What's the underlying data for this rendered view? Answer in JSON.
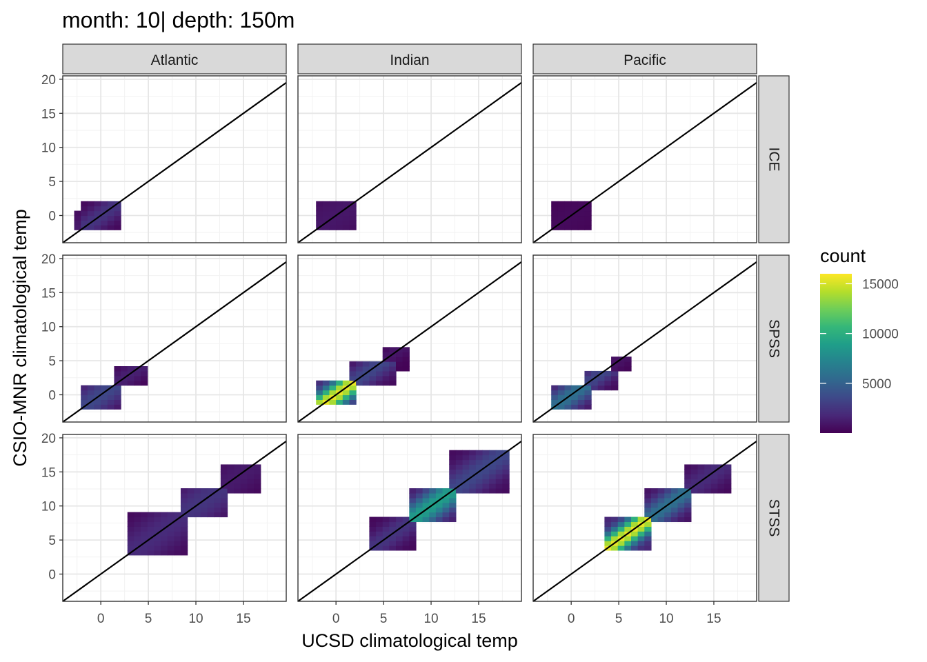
{
  "chart_data": {
    "type": "heatmap",
    "title": "month: 10| depth: 150m",
    "xlabel": "UCSD climatological temp",
    "ylabel": "CSIO-MNR climatological temp",
    "xlim": [
      -4,
      19.5
    ],
    "ylim": [
      -4,
      20.5
    ],
    "x_ticks": [
      0,
      5,
      10,
      15
    ],
    "y_ticks": [
      0,
      5,
      10,
      15,
      20
    ],
    "bin_width": 0.7,
    "reference_line": "y = x",
    "grid": true,
    "facet_columns": [
      "Atlantic",
      "Indian",
      "Pacific"
    ],
    "facet_rows": [
      "ICE",
      "SPSS",
      "STSS"
    ],
    "legend": {
      "title": "count",
      "position": "right",
      "breaks": [
        5000,
        10000,
        15000
      ],
      "range": [
        0,
        16000
      ],
      "colormap": "viridis"
    },
    "panels": [
      {
        "column": "Atlantic",
        "row": "ICE",
        "cells": [
          {
            "x": [
              -2.5,
              0.5
            ],
            "y": [
              -1.5,
              0.5
            ],
            "count": 1200,
            "spread": 1.5
          },
          {
            "x": [
              -1.5,
              1.5
            ],
            "y": [
              -1.5,
              1.5
            ],
            "count": 2500,
            "spread": 1.1
          },
          {
            "x": [
              0.5,
              2.0
            ],
            "y": [
              -0.5,
              1.5
            ],
            "count": 600,
            "spread": 0.8
          }
        ]
      },
      {
        "column": "Indian",
        "row": "ICE",
        "cells": [
          {
            "x": [
              -2.0,
              2.0
            ],
            "y": [
              -1.5,
              1.5
            ],
            "count": 1000,
            "spread": 2.5
          }
        ]
      },
      {
        "column": "Pacific",
        "row": "ICE",
        "cells": [
          {
            "x": [
              -2.0,
              2.0
            ],
            "y": [
              -1.5,
              1.5
            ],
            "count": 400,
            "spread": 2.0
          }
        ]
      },
      {
        "column": "Atlantic",
        "row": "SPSS",
        "cells": [
          {
            "x": [
              -2.0,
              1.5
            ],
            "y": [
              -1.5,
              1.0
            ],
            "count": 3500,
            "spread": 1.5
          },
          {
            "x": [
              1.5,
              4.5
            ],
            "y": [
              1.5,
              4.0
            ],
            "count": 1500,
            "spread": 1.0
          }
        ]
      },
      {
        "column": "Indian",
        "row": "SPSS",
        "cells": [
          {
            "x": [
              -1.5,
              2.0
            ],
            "y": [
              -1.0,
              1.5
            ],
            "count": 15500,
            "spread": 1.0
          },
          {
            "x": [
              2.0,
              6.0
            ],
            "y": [
              1.5,
              4.5
            ],
            "count": 3500,
            "spread": 1.2
          },
          {
            "x": [
              5.0,
              7.5
            ],
            "y": [
              4.0,
              6.5
            ],
            "count": 1000,
            "spread": 0.8
          }
        ]
      },
      {
        "column": "Pacific",
        "row": "SPSS",
        "cells": [
          {
            "x": [
              -1.5,
              1.5
            ],
            "y": [
              -1.5,
              1.0
            ],
            "count": 6000,
            "spread": 1.2
          },
          {
            "x": [
              1.5,
              4.5
            ],
            "y": [
              1.0,
              3.5
            ],
            "count": 3500,
            "spread": 1.0
          },
          {
            "x": [
              4.5,
              6.0
            ],
            "y": [
              3.5,
              5.5
            ],
            "count": 800,
            "spread": 0.8
          }
        ]
      },
      {
        "column": "Atlantic",
        "row": "STSS",
        "cells": [
          {
            "x": [
              3.0,
              9.0
            ],
            "y": [
              3.0,
              9.0
            ],
            "count": 2000,
            "spread": 2.0
          },
          {
            "x": [
              9.0,
              13.0
            ],
            "y": [
              9.0,
              12.5
            ],
            "count": 2500,
            "spread": 2.0
          },
          {
            "x": [
              13.0,
              16.5
            ],
            "y": [
              12.0,
              16.0
            ],
            "count": 1200,
            "spread": 1.8
          }
        ]
      },
      {
        "column": "Indian",
        "row": "STSS",
        "cells": [
          {
            "x": [
              4.0,
              8.0
            ],
            "y": [
              4.0,
              8.0
            ],
            "count": 2500,
            "spread": 1.2
          },
          {
            "x": [
              8.0,
              12.0
            ],
            "y": [
              8.0,
              12.0
            ],
            "count": 9000,
            "spread": 1.3
          },
          {
            "x": [
              12.0,
              17.5
            ],
            "y": [
              12.0,
              17.5
            ],
            "count": 3500,
            "spread": 1.6
          }
        ]
      },
      {
        "column": "Pacific",
        "row": "STSS",
        "cells": [
          {
            "x": [
              3.5,
              8.0
            ],
            "y": [
              3.5,
              8.0
            ],
            "count": 15500,
            "spread": 1.0
          },
          {
            "x": [
              8.0,
              12.0
            ],
            "y": [
              8.0,
              12.0
            ],
            "count": 6000,
            "spread": 1.2
          },
          {
            "x": [
              12.0,
              16.5
            ],
            "y": [
              12.0,
              16.0
            ],
            "count": 2000,
            "spread": 1.4
          }
        ]
      }
    ]
  }
}
